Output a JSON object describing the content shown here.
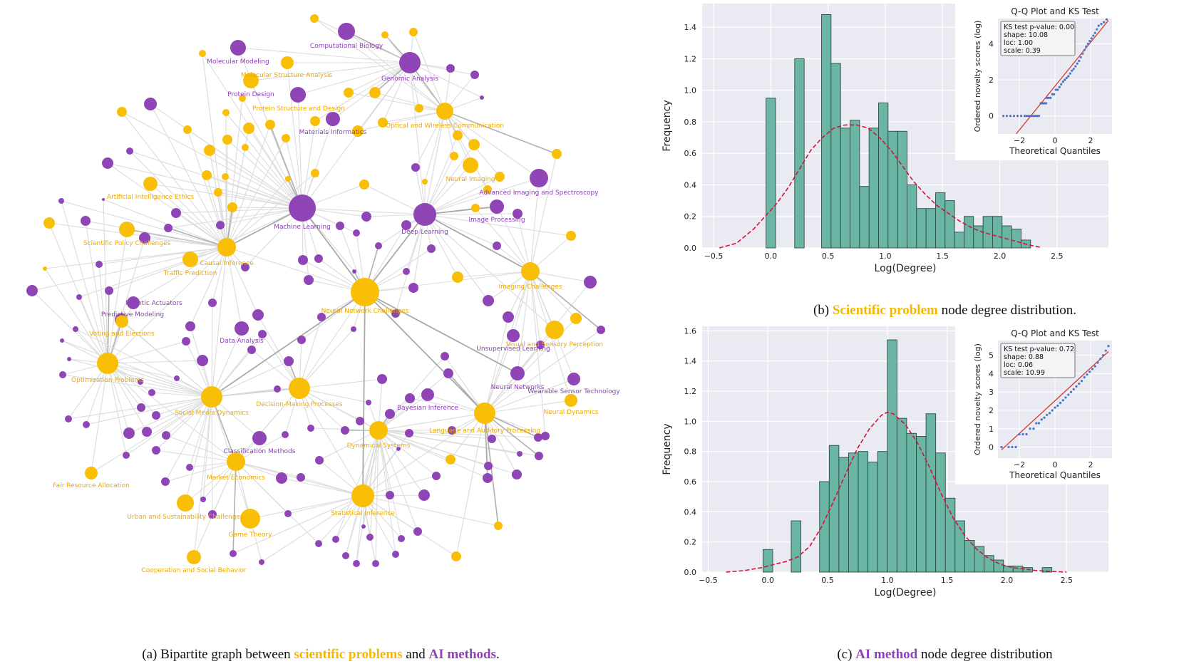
{
  "colors": {
    "scientific": "#f9bf07",
    "ai": "#8f45b5",
    "bar": "#6bb5a5",
    "bar_edge": "#2e4a44",
    "kde": "#d2143c",
    "qq_points": "#4a74c4",
    "qq_line": "#d63a2f",
    "panel_bg": "#eaeaf2",
    "label_sci": "#ecaa00",
    "label_ai": "#8e40b8"
  },
  "captions": {
    "a": {
      "prefix": "(a) Bipartite graph between ",
      "sci": "scientific problems",
      "mid": " and ",
      "ai": "AI methods",
      "suffix": "."
    },
    "b": {
      "prefix": "(b) ",
      "highlight": "Scientific problem",
      "suffix": " node degree distribution."
    },
    "c": {
      "prefix": "(c) ",
      "highlight": "AI method",
      "suffix": " node degree distribution"
    }
  },
  "graph": {
    "labels": [
      {
        "text": "Computational Biology",
        "kind": "ai"
      },
      {
        "text": "Molecular Modeling",
        "kind": "ai"
      },
      {
        "text": "Molecular Structure Analysis",
        "kind": "sci"
      },
      {
        "text": "Genomic Analysis",
        "kind": "ai"
      },
      {
        "text": "Protein Design",
        "kind": "ai"
      },
      {
        "text": "Protein Structure and Design",
        "kind": "sci"
      },
      {
        "text": "Materials Informatics",
        "kind": "ai"
      },
      {
        "text": "Optical and Wireless Communication",
        "kind": "sci"
      },
      {
        "text": "Neural Imaging",
        "kind": "sci"
      },
      {
        "text": "Advanced Imaging and Spectroscopy",
        "kind": "ai"
      },
      {
        "text": "Artificial Intelligence Ethics",
        "kind": "sci"
      },
      {
        "text": "Machine Learning",
        "kind": "ai"
      },
      {
        "text": "Deep Learning",
        "kind": "ai"
      },
      {
        "text": "Image Processing",
        "kind": "ai"
      },
      {
        "text": "Scientific Policy Challenges",
        "kind": "sci"
      },
      {
        "text": "Causal Inference",
        "kind": "sci"
      },
      {
        "text": "Traffic Prediction",
        "kind": "sci"
      },
      {
        "text": "Imaging Challenges",
        "kind": "sci"
      },
      {
        "text": "Robotic Actuators",
        "kind": "ai"
      },
      {
        "text": "Predictive Modeling",
        "kind": "ai"
      },
      {
        "text": "Neural Network Challenges",
        "kind": "sci"
      },
      {
        "text": "Voting and Elections",
        "kind": "sci"
      },
      {
        "text": "Data Analysis",
        "kind": "ai"
      },
      {
        "text": "Visual and Sensory Perception",
        "kind": "sci"
      },
      {
        "text": "Unsupervised Learning",
        "kind": "ai"
      },
      {
        "text": "Optimization Problems",
        "kind": "sci"
      },
      {
        "text": "Neural Networks",
        "kind": "ai"
      },
      {
        "text": "Wearable Sensor Technology",
        "kind": "ai"
      },
      {
        "text": "Decision-Making Processes",
        "kind": "sci"
      },
      {
        "text": "Social Media Dynamics",
        "kind": "sci"
      },
      {
        "text": "Bayesian Inference",
        "kind": "ai"
      },
      {
        "text": "Neural Dynamics",
        "kind": "sci"
      },
      {
        "text": "Language and Auditory Processing",
        "kind": "sci"
      },
      {
        "text": "Dynamical Systems",
        "kind": "sci"
      },
      {
        "text": "Classification Methods",
        "kind": "ai"
      },
      {
        "text": "Market Economics",
        "kind": "sci"
      },
      {
        "text": "Fair Resource Allocation",
        "kind": "sci"
      },
      {
        "text": "Urban and Sustainability Challenges",
        "kind": "sci"
      },
      {
        "text": "Statistical Inference",
        "kind": "sci"
      },
      {
        "text": "Game Theory",
        "kind": "sci"
      },
      {
        "text": "Cooperation and Social Behavior",
        "kind": "sci"
      }
    ]
  },
  "chart_data": [
    {
      "id": "b",
      "type": "bar",
      "title": "",
      "xlabel": "Log(Degree)",
      "ylabel": "Frequency",
      "xlim": [
        -0.6,
        2.95
      ],
      "ylim": [
        0,
        1.55
      ],
      "xticks": [
        -0.5,
        0.0,
        0.5,
        1.0,
        1.5,
        2.0,
        2.5
      ],
      "xtick_labels": [
        "−0.5",
        "0.0",
        "0.5",
        "1.0",
        "1.5",
        "2.0",
        "2.5"
      ],
      "yticks": [
        0.0,
        0.2,
        0.4,
        0.6,
        0.8,
        1.0,
        1.2,
        1.4
      ],
      "ytick_labels": [
        "0.0",
        "0.2",
        "0.4",
        "0.6",
        "0.8",
        "1.0",
        "1.2",
        "1.4"
      ],
      "bin_width": 0.083,
      "bins": [
        {
          "x": 0.0,
          "y": 0.95
        },
        {
          "x": 0.25,
          "y": 1.2
        },
        {
          "x": 0.485,
          "y": 1.48
        },
        {
          "x": 0.568,
          "y": 1.17
        },
        {
          "x": 0.651,
          "y": 0.76
        },
        {
          "x": 0.734,
          "y": 0.81
        },
        {
          "x": 0.817,
          "y": 0.39
        },
        {
          "x": 0.9,
          "y": 0.76
        },
        {
          "x": 0.983,
          "y": 0.92
        },
        {
          "x": 1.066,
          "y": 0.74
        },
        {
          "x": 1.149,
          "y": 0.74
        },
        {
          "x": 1.232,
          "y": 0.4
        },
        {
          "x": 1.315,
          "y": 0.25
        },
        {
          "x": 1.398,
          "y": 0.25
        },
        {
          "x": 1.481,
          "y": 0.35
        },
        {
          "x": 1.564,
          "y": 0.3
        },
        {
          "x": 1.647,
          "y": 0.1
        },
        {
          "x": 1.73,
          "y": 0.2
        },
        {
          "x": 1.813,
          "y": 0.14
        },
        {
          "x": 1.896,
          "y": 0.2
        },
        {
          "x": 1.979,
          "y": 0.2
        },
        {
          "x": 2.062,
          "y": 0.14
        },
        {
          "x": 2.145,
          "y": 0.12
        },
        {
          "x": 2.228,
          "y": 0.05
        }
      ],
      "kde": {
        "x": [
          -0.45,
          -0.3,
          -0.15,
          -0.05,
          0.05,
          0.15,
          0.25,
          0.35,
          0.45,
          0.55,
          0.65,
          0.75,
          0.85,
          0.95,
          1.05,
          1.15,
          1.25,
          1.35,
          1.45,
          1.55,
          1.65,
          1.75,
          1.85,
          1.95,
          2.05,
          2.15,
          2.25,
          2.35
        ],
        "y": [
          0.0,
          0.03,
          0.12,
          0.2,
          0.28,
          0.38,
          0.5,
          0.62,
          0.7,
          0.76,
          0.78,
          0.78,
          0.76,
          0.7,
          0.62,
          0.52,
          0.42,
          0.34,
          0.27,
          0.22,
          0.17,
          0.13,
          0.1,
          0.08,
          0.06,
          0.04,
          0.02,
          0.005
        ]
      },
      "inset": {
        "title": "Q-Q Plot and KS Test",
        "xlabel": "Theoretical Quantiles",
        "ylabel": "Ordered novelty scores (log)",
        "xlim": [
          -3.2,
          3.2
        ],
        "ylim": [
          -1.0,
          5.4
        ],
        "xticks": [
          -2,
          0,
          2
        ],
        "xtick_labels": [
          "−2",
          "0",
          "2"
        ],
        "yticks": [
          0,
          2,
          4
        ],
        "ytick_labels": [
          "0",
          "2",
          "4"
        ],
        "line": {
          "x": [
            -3.0,
            3.0
          ],
          "y": [
            -2.0,
            5.3
          ]
        },
        "ks_lines": [
          "KS test p-value: 0.00",
          "shape: 10.08",
          "loc: 1.00",
          "scale: 0.39"
        ],
        "points": [
          [
            -2.9,
            0.0
          ],
          [
            -2.7,
            0.0
          ],
          [
            -2.5,
            0.0
          ],
          [
            -2.3,
            0.0
          ],
          [
            -2.1,
            0.0
          ],
          [
            -1.9,
            0.0
          ],
          [
            -1.7,
            0.0
          ],
          [
            -1.6,
            0.0
          ],
          [
            -1.5,
            0.0
          ],
          [
            -1.4,
            0.0
          ],
          [
            -1.3,
            0.0
          ],
          [
            -1.2,
            0.0
          ],
          [
            -1.1,
            0.0
          ],
          [
            -1.0,
            0.0
          ],
          [
            -0.9,
            0.0
          ],
          [
            -0.8,
            0.7
          ],
          [
            -0.7,
            0.7
          ],
          [
            -0.6,
            0.7
          ],
          [
            -0.5,
            0.7
          ],
          [
            -0.45,
            1.0
          ],
          [
            -0.35,
            1.0
          ],
          [
            -0.25,
            1.0
          ],
          [
            -0.15,
            1.2
          ],
          [
            -0.05,
            1.2
          ],
          [
            0.05,
            1.45
          ],
          [
            0.15,
            1.45
          ],
          [
            0.25,
            1.6
          ],
          [
            0.35,
            1.75
          ],
          [
            0.45,
            1.9
          ],
          [
            0.55,
            2.0
          ],
          [
            0.65,
            2.1
          ],
          [
            0.75,
            2.2
          ],
          [
            0.85,
            2.35
          ],
          [
            0.95,
            2.5
          ],
          [
            1.05,
            2.6
          ],
          [
            1.15,
            2.75
          ],
          [
            1.25,
            2.9
          ],
          [
            1.35,
            3.05
          ],
          [
            1.45,
            3.25
          ],
          [
            1.55,
            3.45
          ],
          [
            1.65,
            3.65
          ],
          [
            1.75,
            3.85
          ],
          [
            1.85,
            4.0
          ],
          [
            1.95,
            4.15
          ],
          [
            2.05,
            4.3
          ],
          [
            2.15,
            4.45
          ],
          [
            2.25,
            4.6
          ],
          [
            2.35,
            4.8
          ],
          [
            2.45,
            5.0
          ],
          [
            2.6,
            5.1
          ],
          [
            2.75,
            5.2
          ],
          [
            2.9,
            5.35
          ]
        ]
      }
    },
    {
      "id": "c",
      "type": "bar",
      "title": "",
      "xlabel": "Log(Degree)",
      "ylabel": "Frequency",
      "xlim": [
        -0.55,
        2.85
      ],
      "ylim": [
        0,
        1.63
      ],
      "xticks": [
        -0.5,
        0.0,
        0.5,
        1.0,
        1.5,
        2.0,
        2.5
      ],
      "xtick_labels": [
        "−0.5",
        "0.0",
        "0.5",
        "1.0",
        "1.5",
        "2.0",
        "2.5"
      ],
      "yticks": [
        0.0,
        0.2,
        0.4,
        0.6,
        0.8,
        1.0,
        1.2,
        1.4,
        1.6
      ],
      "ytick_labels": [
        "0.0",
        "0.2",
        "0.4",
        "0.6",
        "0.8",
        "1.0",
        "1.2",
        "1.4",
        "1.6"
      ],
      "bin_width": 0.081,
      "bins": [
        {
          "x": 0.0,
          "y": 0.15
        },
        {
          "x": 0.236,
          "y": 0.34
        },
        {
          "x": 0.473,
          "y": 0.6
        },
        {
          "x": 0.554,
          "y": 0.84
        },
        {
          "x": 0.635,
          "y": 0.76
        },
        {
          "x": 0.716,
          "y": 0.79
        },
        {
          "x": 0.797,
          "y": 0.8
        },
        {
          "x": 0.878,
          "y": 0.73
        },
        {
          "x": 0.959,
          "y": 0.8
        },
        {
          "x": 1.04,
          "y": 1.54
        },
        {
          "x": 1.121,
          "y": 1.02
        },
        {
          "x": 1.202,
          "y": 0.92
        },
        {
          "x": 1.283,
          "y": 0.9
        },
        {
          "x": 1.364,
          "y": 1.05
        },
        {
          "x": 1.445,
          "y": 0.79
        },
        {
          "x": 1.526,
          "y": 0.49
        },
        {
          "x": 1.607,
          "y": 0.34
        },
        {
          "x": 1.688,
          "y": 0.21
        },
        {
          "x": 1.769,
          "y": 0.17
        },
        {
          "x": 1.85,
          "y": 0.11
        },
        {
          "x": 1.931,
          "y": 0.08
        },
        {
          "x": 2.012,
          "y": 0.04
        },
        {
          "x": 2.093,
          "y": 0.04
        },
        {
          "x": 2.174,
          "y": 0.03
        },
        {
          "x": 2.255,
          "y": 0.0
        },
        {
          "x": 2.336,
          "y": 0.03
        }
      ],
      "kde": {
        "x": [
          -0.35,
          -0.2,
          -0.05,
          0.05,
          0.15,
          0.25,
          0.35,
          0.45,
          0.55,
          0.65,
          0.75,
          0.85,
          0.95,
          1.0,
          1.05,
          1.15,
          1.25,
          1.35,
          1.45,
          1.55,
          1.65,
          1.75,
          1.85,
          1.95,
          2.05,
          2.15,
          2.25,
          2.35,
          2.5
        ],
        "y": [
          0.0,
          0.01,
          0.03,
          0.05,
          0.07,
          0.1,
          0.17,
          0.3,
          0.47,
          0.65,
          0.82,
          0.95,
          1.04,
          1.06,
          1.05,
          0.98,
          0.86,
          0.7,
          0.52,
          0.36,
          0.24,
          0.15,
          0.09,
          0.05,
          0.03,
          0.02,
          0.01,
          0.005,
          0.0
        ]
      },
      "inset": {
        "title": "Q-Q Plot and KS Test",
        "xlabel": "Theoretical Quantiles",
        "ylabel": "Ordered novelty scores (log)",
        "xlim": [
          -3.2,
          3.2
        ],
        "ylim": [
          -0.6,
          5.8
        ],
        "xticks": [
          -2,
          0,
          2
        ],
        "xtick_labels": [
          "−2",
          "0",
          "2"
        ],
        "yticks": [
          0,
          1,
          2,
          3,
          4,
          5
        ],
        "ytick_labels": [
          "0",
          "1",
          "2",
          "3",
          "4",
          "5"
        ],
        "line": {
          "x": [
            -3.0,
            3.0
          ],
          "y": [
            -0.15,
            5.2
          ]
        },
        "ks_lines": [
          "KS test p-value: 0.72",
          "shape: 0.88",
          "loc: 0.06",
          "scale: 10.99"
        ],
        "points": [
          [
            -3.0,
            0.0
          ],
          [
            -2.6,
            0.0
          ],
          [
            -2.4,
            0.0
          ],
          [
            -2.2,
            0.0
          ],
          [
            -2.0,
            0.7
          ],
          [
            -1.8,
            0.7
          ],
          [
            -1.6,
            0.7
          ],
          [
            -1.4,
            1.0
          ],
          [
            -1.2,
            1.0
          ],
          [
            -1.05,
            1.3
          ],
          [
            -0.9,
            1.3
          ],
          [
            -0.75,
            1.5
          ],
          [
            -0.6,
            1.6
          ],
          [
            -0.45,
            1.75
          ],
          [
            -0.3,
            1.85
          ],
          [
            -0.15,
            2.0
          ],
          [
            0.0,
            2.15
          ],
          [
            0.15,
            2.25
          ],
          [
            0.3,
            2.4
          ],
          [
            0.45,
            2.55
          ],
          [
            0.6,
            2.7
          ],
          [
            0.75,
            2.85
          ],
          [
            0.9,
            3.0
          ],
          [
            1.05,
            3.15
          ],
          [
            1.2,
            3.3
          ],
          [
            1.35,
            3.45
          ],
          [
            1.5,
            3.6
          ],
          [
            1.65,
            3.8
          ],
          [
            1.8,
            3.95
          ],
          [
            1.95,
            4.1
          ],
          [
            2.1,
            4.25
          ],
          [
            2.25,
            4.4
          ],
          [
            2.4,
            4.6
          ],
          [
            2.55,
            4.8
          ],
          [
            2.7,
            5.0
          ],
          [
            2.85,
            5.25
          ],
          [
            3.0,
            5.5
          ]
        ]
      }
    }
  ]
}
